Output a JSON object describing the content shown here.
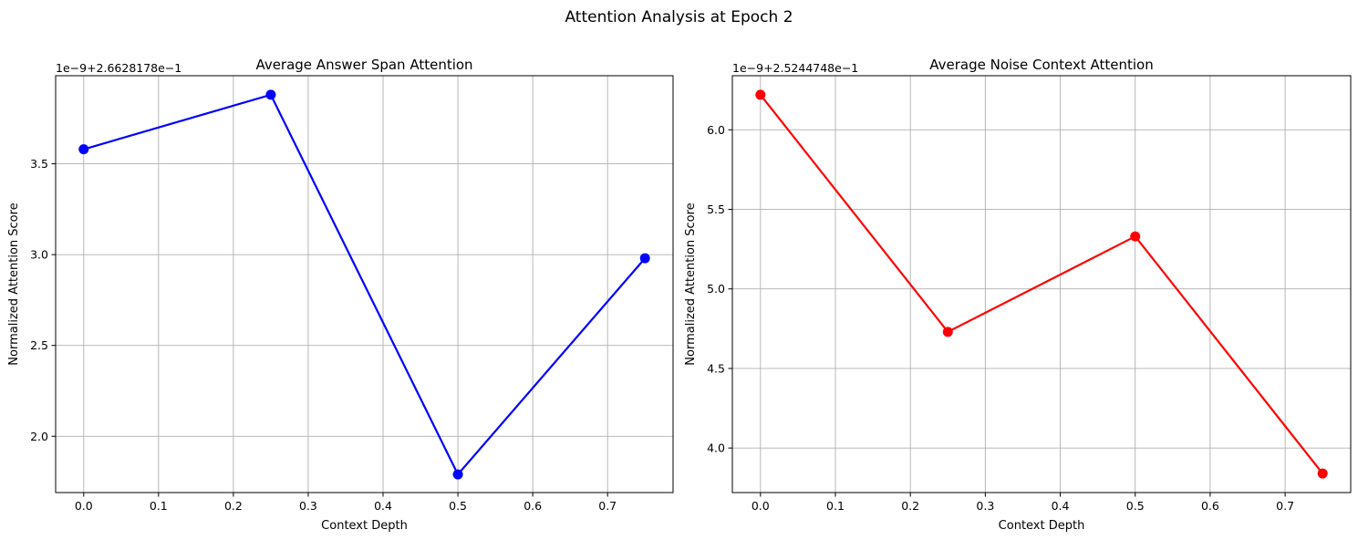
{
  "figure": {
    "suptitle": "Attention Analysis at Epoch 2"
  },
  "chart_data": [
    {
      "type": "line",
      "title": "Average Answer Span Attention",
      "xlabel": "Context Depth",
      "ylabel": "Normalized Attention Score",
      "offset_text": "1e−9+2.6628178e−1",
      "x": [
        0.0,
        0.25,
        0.5,
        0.75
      ],
      "series": [
        {
          "values": [
            3.58,
            3.88,
            1.79,
            2.98
          ],
          "color": "#0000ff",
          "marker": "circle"
        }
      ],
      "xlim": [
        -0.0375,
        0.7875
      ],
      "ylim": [
        1.69,
        3.985
      ],
      "xticks": [
        0.0,
        0.1,
        0.2,
        0.3,
        0.4,
        0.5,
        0.6,
        0.7
      ],
      "xtick_labels": [
        "0.0",
        "0.1",
        "0.2",
        "0.3",
        "0.4",
        "0.5",
        "0.6",
        "0.7"
      ],
      "yticks": [
        2.0,
        2.5,
        3.0,
        3.5
      ],
      "ytick_labels": [
        "2.0",
        "2.5",
        "3.0",
        "3.5"
      ],
      "grid": true
    },
    {
      "type": "line",
      "title": "Average Noise Context Attention",
      "xlabel": "Context Depth",
      "ylabel": "Normalized Attention Score",
      "offset_text": "1e−9+2.5244748e−1",
      "x": [
        0.0,
        0.25,
        0.5,
        0.75
      ],
      "series": [
        {
          "values": [
            6.22,
            4.73,
            5.33,
            3.84
          ],
          "color": "#ff0000",
          "marker": "circle"
        }
      ],
      "xlim": [
        -0.0375,
        0.7875
      ],
      "ylim": [
        3.72,
        6.34
      ],
      "xticks": [
        0.0,
        0.1,
        0.2,
        0.3,
        0.4,
        0.5,
        0.6,
        0.7
      ],
      "xtick_labels": [
        "0.0",
        "0.1",
        "0.2",
        "0.3",
        "0.4",
        "0.5",
        "0.6",
        "0.7"
      ],
      "yticks": [
        4.0,
        4.5,
        5.0,
        5.5,
        6.0
      ],
      "ytick_labels": [
        "4.0",
        "4.5",
        "5.0",
        "5.5",
        "6.0"
      ],
      "grid": true
    }
  ]
}
